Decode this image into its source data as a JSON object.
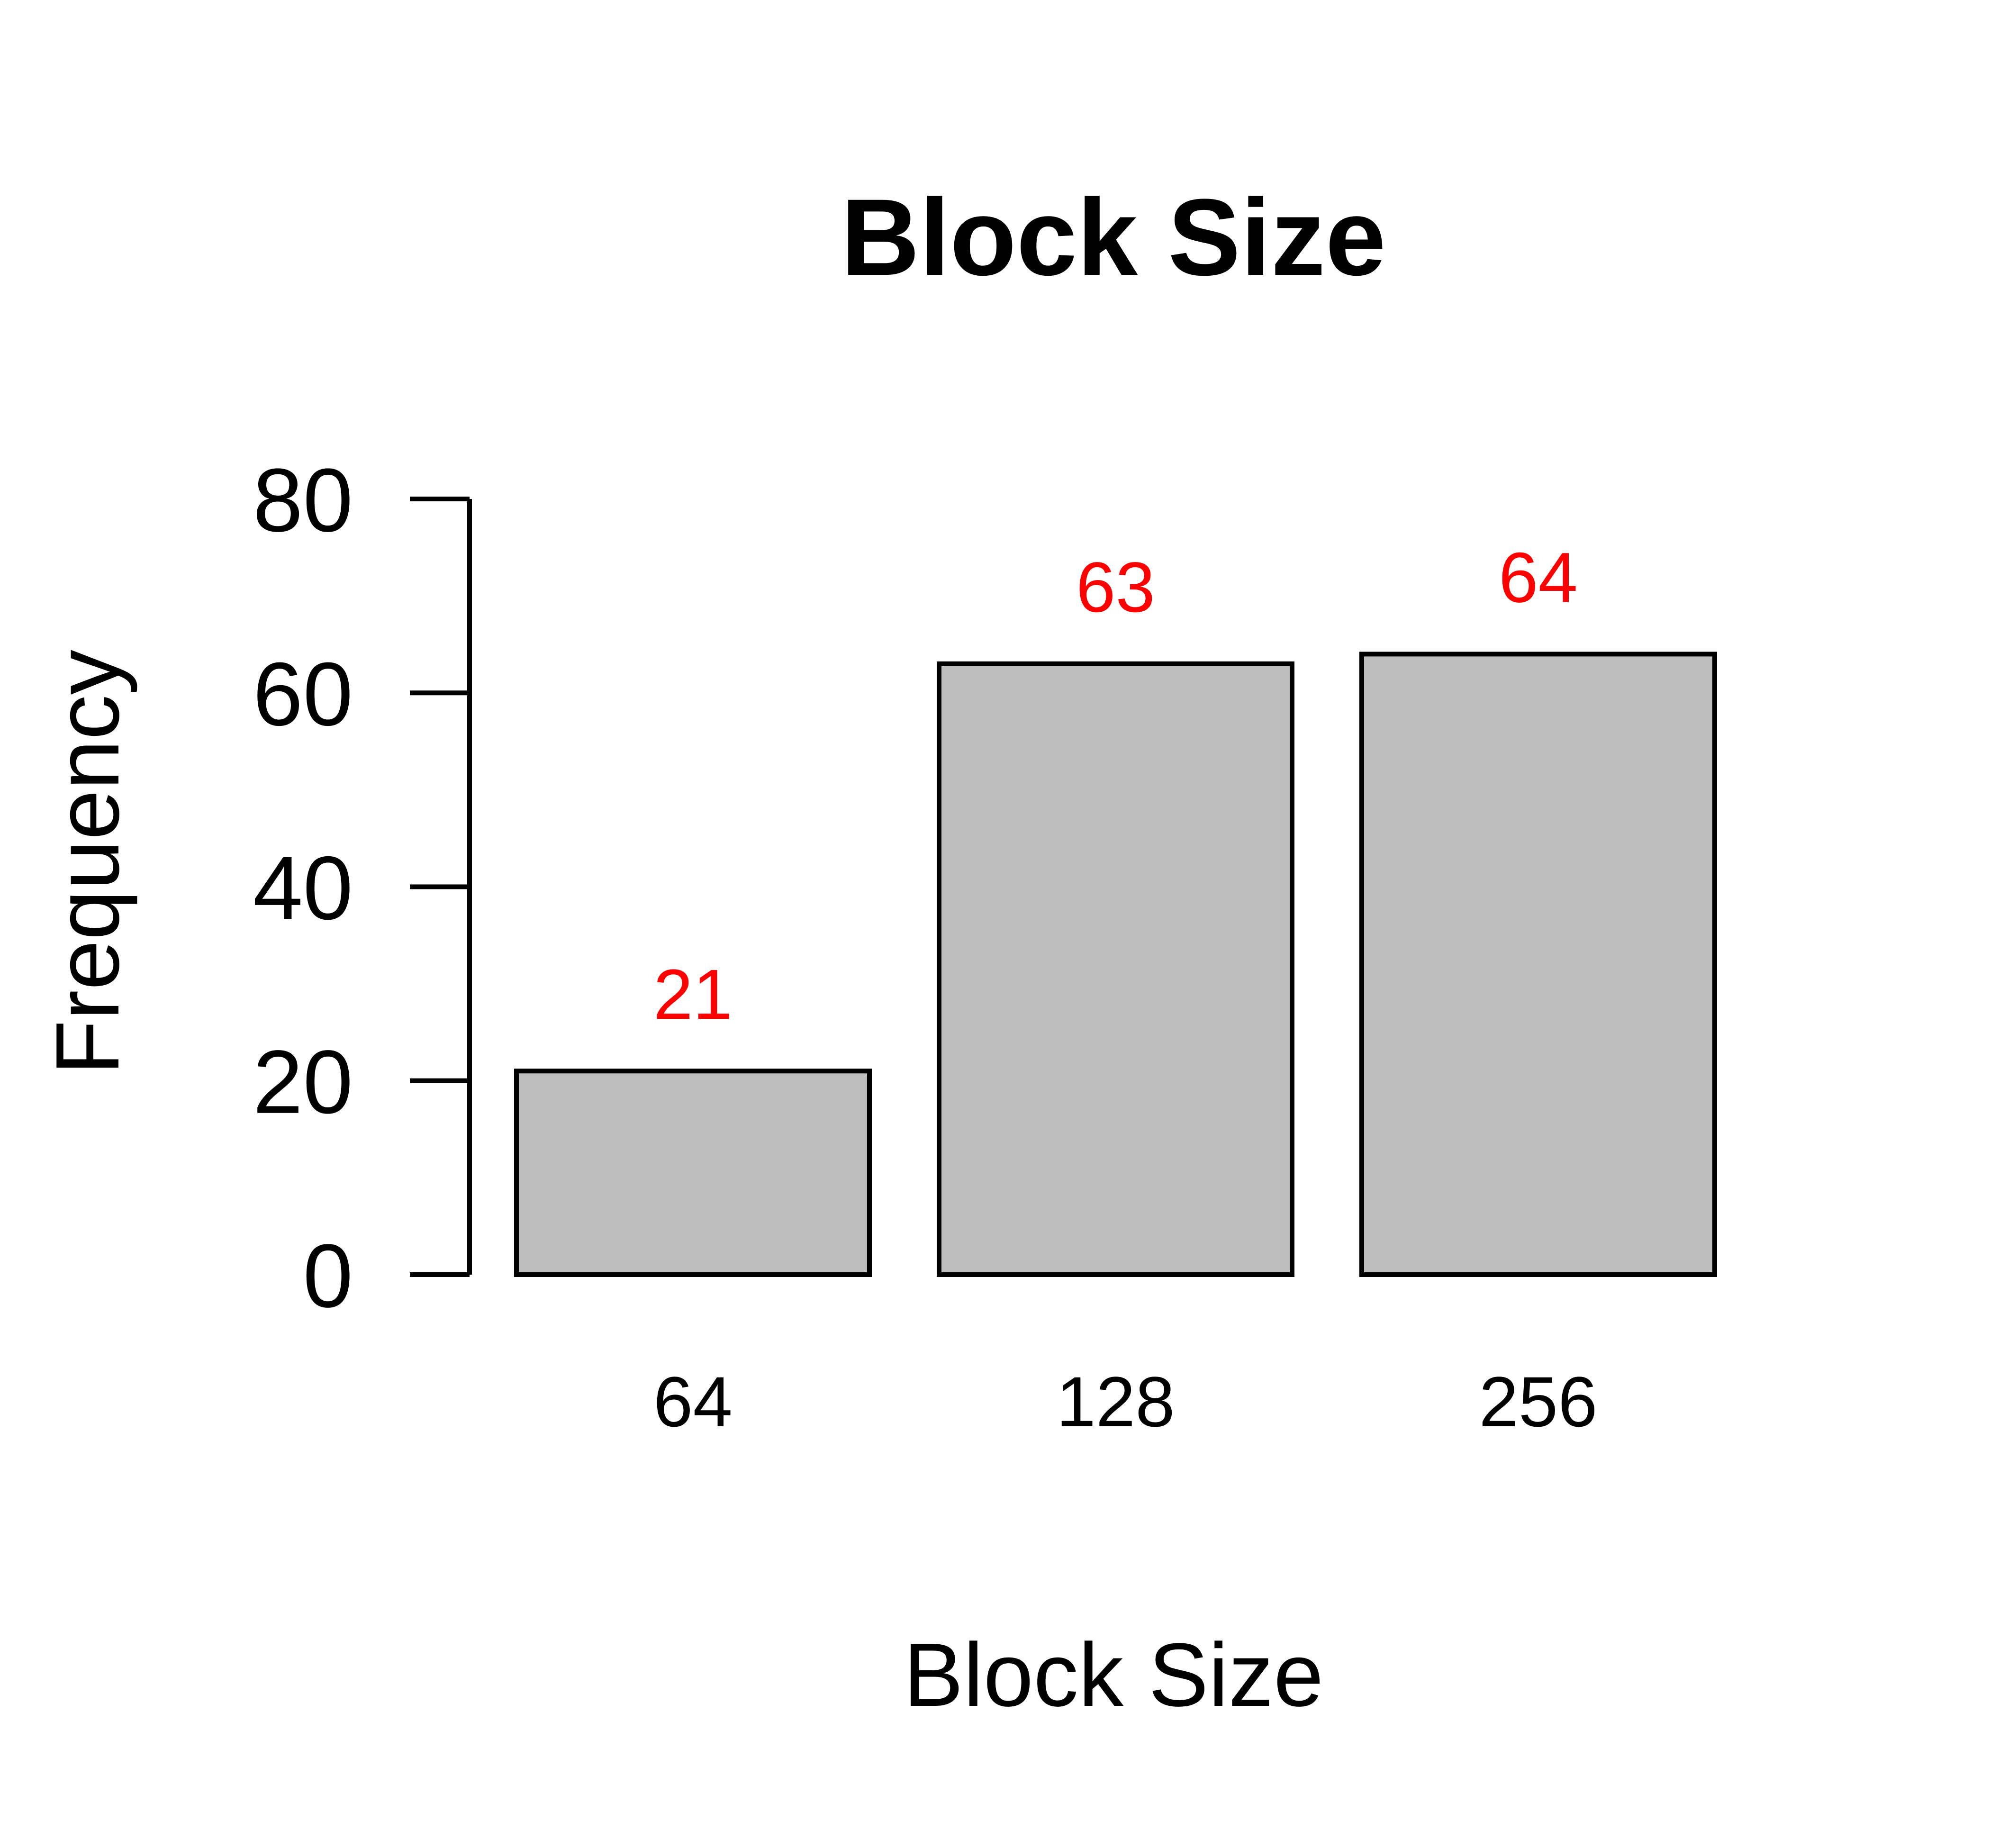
{
  "chart_data": {
    "type": "bar",
    "title": "Block Size",
    "xlabel": "Block Size",
    "ylabel": "Frequency",
    "categories": [
      "64",
      "128",
      "256"
    ],
    "values": [
      21,
      63,
      64
    ],
    "data_labels": [
      "21",
      "63",
      "64"
    ],
    "yticks": [
      "0",
      "20",
      "40",
      "60",
      "80"
    ],
    "ylim": [
      0,
      80
    ],
    "grid": false,
    "legend": "none",
    "colors": {
      "bar_fill": "#bebebe",
      "bar_stroke": "#000000",
      "data_label": "#ff0000",
      "axis": "#000000"
    }
  }
}
